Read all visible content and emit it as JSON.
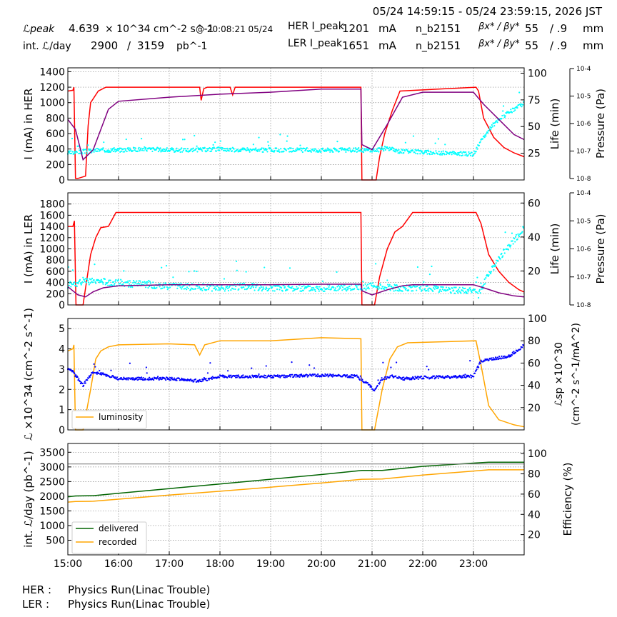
{
  "header": {
    "time_range": "05/24 14:59:15 - 05/24 23:59:15, 2026 JST",
    "peak_lum_label": "ℒpeak",
    "peak_lum_value": "4.639",
    "peak_lum_unit": "× 10^34 cm^-2 s^-1",
    "peak_time": "@ 20:08:21 05/24",
    "int_lum_label": "int. ℒ/day",
    "int_lum_value": "2900",
    "int_lum_sep": "/",
    "int_lum_total": "3159",
    "int_lum_unit": "pb^-1",
    "her": {
      "label": "HER I_peak",
      "current": "1201",
      "unit": "mA",
      "nb_label": "n_b",
      "nb": "2151",
      "beta_label": "βx* / βy*",
      "beta_x": "55",
      "beta_y": "/ .9",
      "beta_unit": "mm"
    },
    "ler": {
      "label": "LER I_peak",
      "current": "1651",
      "unit": "mA",
      "nb_label": "n_b",
      "nb": "2151",
      "beta_label": "βx* / βy*",
      "beta_x": "55",
      "beta_y": "/ .9",
      "beta_unit": "mm"
    }
  },
  "footer": {
    "her_label": "HER :",
    "her_status": "Physics Run(Linac Trouble)",
    "ler_label": "LER :",
    "ler_status": "Physics Run(Linac Trouble)"
  },
  "colors": {
    "current": "#ff0000",
    "lifetime": "#00ffff",
    "pressure": "#800080",
    "luminosity": "#ffa500",
    "specific": "#0000ff",
    "delivered": "#006400",
    "recorded": "#ffa500",
    "reference": "#808080"
  },
  "chart_data": [
    {
      "type": "line",
      "ylabel": "I (mA) in HER",
      "ylim": [
        0,
        1450
      ],
      "yticks": [
        0,
        200,
        400,
        600,
        800,
        1000,
        1200,
        1400
      ],
      "y2label": "Life (min)",
      "y2lim": [
        0,
        105
      ],
      "y2ticks": [
        25,
        50,
        75,
        100
      ],
      "y3label": "Pressure (Pa)",
      "y3ticks": [
        "10^-8",
        "10^-7",
        "10^-6",
        "10^-5",
        "10^-4"
      ],
      "y3scale": "log",
      "xlim": [
        15.0,
        24.0
      ],
      "series": [
        {
          "role": "current",
          "x": [
            15.0,
            15.1,
            15.12,
            15.15,
            15.2,
            15.35,
            15.4,
            15.45,
            15.5,
            15.6,
            15.75,
            17.6,
            17.63,
            17.68,
            17.75,
            18.2,
            18.25,
            18.3,
            20.78,
            20.8,
            21.08,
            21.15,
            21.25,
            21.4,
            21.55,
            23.05,
            23.1,
            23.2,
            23.4,
            23.6,
            23.8,
            24.0
          ],
          "y": [
            1150,
            1160,
            1200,
            20,
            20,
            50,
            700,
            1000,
            1050,
            1150,
            1200,
            1200,
            1030,
            1180,
            1200,
            1200,
            1100,
            1200,
            1200,
            0,
            0,
            300,
            600,
            900,
            1150,
            1200,
            1150,
            800,
            550,
            420,
            350,
            300
          ]
        },
        {
          "role": "lifetime_scatter",
          "x": [
            15.0,
            15.6,
            16.0,
            16.5,
            17.0,
            17.5,
            18.0,
            18.5,
            19.0,
            19.5,
            20.0,
            20.5,
            20.75,
            21.1,
            21.3,
            21.5,
            21.8,
            22.0,
            22.5,
            23.0,
            23.2,
            23.4,
            23.6,
            23.8,
            24.0
          ],
          "y": [
            25,
            28,
            28,
            29,
            28,
            28,
            29,
            28,
            28,
            28,
            28,
            28,
            28,
            28,
            30,
            27,
            27,
            26,
            25,
            24,
            40,
            52,
            60,
            66,
            72
          ]
        },
        {
          "role": "pressure",
          "x": [
            15.0,
            15.15,
            15.3,
            15.5,
            15.8,
            16.0,
            17.0,
            18.0,
            19.0,
            20.0,
            20.78,
            20.8,
            21.0,
            21.3,
            21.6,
            22.0,
            23.0,
            23.2,
            23.5,
            23.8,
            24.0
          ],
          "y": [
            0.6,
            0.5,
            0.2,
            0.3,
            0.7,
            0.78,
            0.82,
            0.85,
            0.87,
            0.9,
            0.9,
            0.35,
            0.3,
            0.55,
            0.82,
            0.87,
            0.87,
            0.75,
            0.6,
            0.45,
            0.4
          ]
        }
      ]
    },
    {
      "type": "line",
      "ylabel": "I (mA) in LER",
      "ylim": [
        0,
        2000
      ],
      "yticks": [
        0,
        200,
        400,
        600,
        800,
        1000,
        1200,
        1400,
        1600,
        1800
      ],
      "y2label": "Life (min)",
      "y2lim": [
        0,
        66
      ],
      "y2ticks": [
        20,
        40,
        60
      ],
      "y3label": "Pressure (Pa)",
      "y3ticks": [
        "10^-8",
        "10^-7",
        "10^-6",
        "10^-5",
        "10^-4"
      ],
      "y3scale": "log",
      "xlim": [
        15.0,
        24.0
      ],
      "series": [
        {
          "role": "current",
          "x": [
            15.0,
            15.1,
            15.13,
            15.16,
            15.2,
            15.3,
            15.35,
            15.45,
            15.55,
            15.65,
            15.8,
            15.95,
            20.78,
            20.8,
            21.05,
            21.15,
            21.3,
            21.45,
            21.6,
            21.8,
            23.05,
            23.15,
            23.3,
            23.5,
            23.7,
            23.9,
            24.0
          ],
          "y": [
            1400,
            1400,
            1500,
            0,
            0,
            0,
            300,
            900,
            1200,
            1380,
            1400,
            1650,
            1650,
            0,
            0,
            500,
            1000,
            1300,
            1400,
            1650,
            1650,
            1450,
            900,
            600,
            400,
            270,
            230
          ]
        },
        {
          "role": "lifetime_scatter",
          "x": [
            15.0,
            15.5,
            16.0,
            16.5,
            17.0,
            18.0,
            18.5,
            19.0,
            19.5,
            20.0,
            20.5,
            21.0,
            21.5,
            22.0,
            22.5,
            23.0,
            23.1,
            23.3,
            23.5,
            23.7,
            24.0
          ],
          "y": [
            12,
            14,
            13,
            12,
            11,
            10,
            11,
            10,
            10,
            10,
            10,
            11,
            10,
            10,
            9,
            8,
            6,
            18,
            27,
            35,
            45
          ]
        },
        {
          "role": "pressure",
          "x": [
            15.0,
            15.2,
            15.35,
            15.5,
            15.7,
            16.0,
            17.0,
            18.0,
            19.0,
            20.0,
            20.78,
            20.8,
            21.0,
            21.3,
            21.6,
            21.8,
            23.0,
            23.2,
            23.5,
            23.8,
            24.0
          ],
          "y": [
            0.18,
            0.1,
            0.08,
            0.13,
            0.17,
            0.19,
            0.2,
            0.2,
            0.2,
            0.205,
            0.205,
            0.14,
            0.1,
            0.15,
            0.19,
            0.2,
            0.2,
            0.17,
            0.12,
            0.09,
            0.08
          ]
        }
      ]
    },
    {
      "type": "line",
      "ylabel": "ℒ ×10^34 (cm^-2 s^-1)",
      "ylim": [
        0,
        5.5
      ],
      "yticks": [
        0,
        1,
        2,
        3,
        4,
        5
      ],
      "y2label": "ℒsp ×10^30 (cm^-2 s^-1/mA^2)",
      "y2lim": [
        0,
        100
      ],
      "y2ticks": [
        20,
        40,
        60,
        80,
        100
      ],
      "xlim": [
        15.0,
        24.0
      ],
      "legend": [
        "luminosity"
      ],
      "legend_loc": "lower-left",
      "series": [
        {
          "name": "luminosity",
          "role": "luminosity",
          "x": [
            15.0,
            15.1,
            15.12,
            15.15,
            15.3,
            15.45,
            15.55,
            15.65,
            15.8,
            16.0,
            17.0,
            17.5,
            17.6,
            17.7,
            18.0,
            19.0,
            20.0,
            20.78,
            20.8,
            21.05,
            21.2,
            21.35,
            21.5,
            21.7,
            23.05,
            23.15,
            23.3,
            23.5,
            23.8,
            24.0
          ],
          "y": [
            3.9,
            4.0,
            4.2,
            0.0,
            0.0,
            2.0,
            3.5,
            3.9,
            4.1,
            4.2,
            4.25,
            4.2,
            3.7,
            4.2,
            4.4,
            4.4,
            4.55,
            4.5,
            0.0,
            0.0,
            2.0,
            3.5,
            4.1,
            4.3,
            4.4,
            3.2,
            1.2,
            0.5,
            0.25,
            0.15
          ]
        },
        {
          "role": "specific_luminosity",
          "x": [
            15.0,
            15.1,
            15.3,
            15.5,
            15.7,
            16.0,
            17.0,
            17.6,
            18.0,
            19.0,
            20.0,
            20.7,
            20.95,
            21.05,
            21.2,
            21.4,
            21.6,
            22.0,
            23.0,
            23.15,
            23.4,
            23.7,
            24.0
          ],
          "y": [
            54,
            52,
            40,
            52,
            50,
            46,
            46,
            44,
            48,
            48,
            49,
            48,
            40,
            35,
            46,
            48,
            46,
            47,
            48,
            62,
            64,
            66,
            76
          ]
        }
      ]
    },
    {
      "type": "line",
      "ylabel": "int. ℒ/day (pb^-1)",
      "ylim": [
        0,
        3800
      ],
      "yticks": [
        500,
        1000,
        1500,
        2000,
        2500,
        3000,
        3500
      ],
      "y2label": "Efficiency (%)",
      "y2lim": [
        0,
        110
      ],
      "y2ticks": [
        20,
        40,
        60,
        80,
        100
      ],
      "xlim": [
        15.0,
        24.0
      ],
      "xticks": [
        "15:00",
        "16:00",
        "17:00",
        "18:00",
        "19:00",
        "20:00",
        "21:00",
        "22:00",
        "23:00"
      ],
      "legend": [
        "delivered",
        "recorded"
      ],
      "legend_loc": "lower-left",
      "series": [
        {
          "name": "delivered",
          "role": "delivered",
          "x": [
            15.0,
            15.15,
            15.5,
            16.0,
            17.0,
            18.0,
            19.0,
            20.0,
            20.8,
            21.2,
            22.0,
            23.0,
            23.3,
            24.0
          ],
          "y": [
            1980,
            2010,
            2020,
            2100,
            2260,
            2420,
            2580,
            2740,
            2880,
            2880,
            3020,
            3130,
            3159,
            3159
          ]
        },
        {
          "name": "recorded",
          "role": "recorded",
          "x": [
            15.0,
            15.15,
            15.5,
            16.0,
            17.0,
            18.0,
            19.0,
            20.0,
            20.8,
            21.2,
            22.0,
            23.0,
            23.3,
            24.0
          ],
          "y": [
            1800,
            1820,
            1830,
            1900,
            2040,
            2170,
            2310,
            2450,
            2580,
            2590,
            2720,
            2860,
            2900,
            2900
          ]
        },
        {
          "role": "reference",
          "x": [
            15.0,
            24.0
          ],
          "y": [
            3100,
            3100
          ]
        }
      ]
    }
  ]
}
